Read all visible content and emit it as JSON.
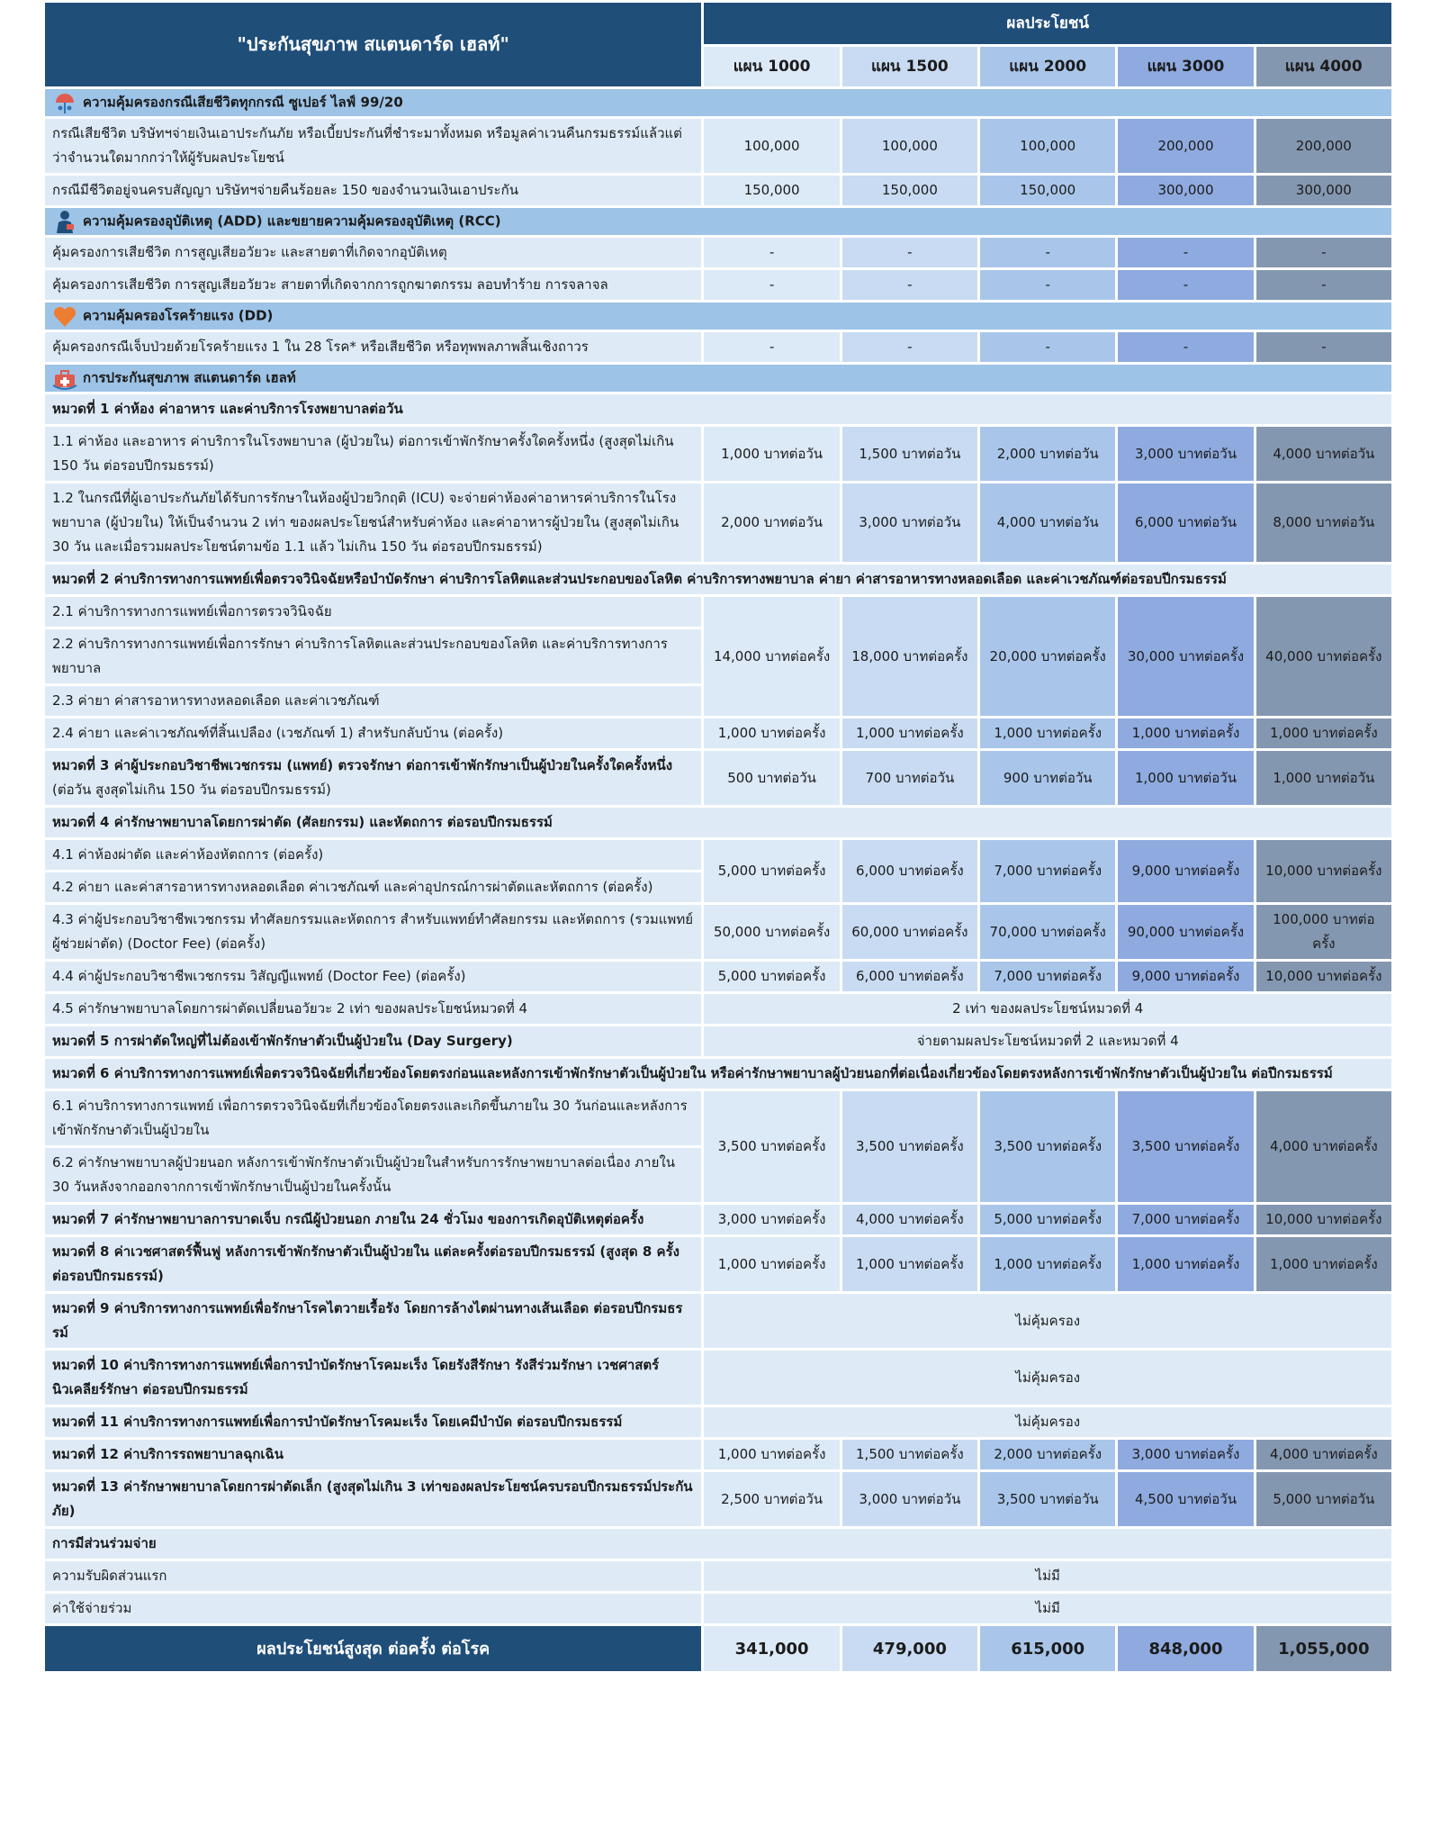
{
  "header": {
    "title": "\"ประกันสุขภาพ สแตนดาร์ด เฮลท์\"",
    "benefits": "ผลประโยชน์",
    "plans": [
      "แผน 1000",
      "แผน 1500",
      "แผน 2000",
      "แผน 3000",
      "แผน 4000"
    ]
  },
  "sections": [
    {
      "title": "ความคุ้มครองกรณีเสียชีวิตทุกกรณี   ซูเปอร์ ไลฟ์ 99/20",
      "rows": [
        {
          "label": "กรณีเสียชีวิต บริษัทฯจ่ายเงินเอาประกันภัย หรือเบี้ยประกันที่ชำระมาทั้งหมด หรือมูลค่าเวนคืนกรมธรรม์แล้วแต่ว่าจำนวนใดมากกว่าให้ผู้รับผลประโยชน์",
          "values": [
            "100,000",
            "100,000",
            "100,000",
            "200,000",
            "200,000"
          ]
        },
        {
          "label": "กรณีมีชีวิตอยู่จนครบสัญญา บริษัทฯจ่ายคืนร้อยละ 150 ของจำนวนเงินเอาประกัน",
          "values": [
            "150,000",
            "150,000",
            "150,000",
            "300,000",
            "300,000"
          ]
        }
      ]
    },
    {
      "title": "ความคุ้มครองอุบัติเหตุ (ADD)  และขยายความคุ้มครองอุบัติเหตุ (RCC)",
      "rows": [
        {
          "label": "คุ้มครองการเสียชีวิต การสูญเสียอวัยวะ และสายตาที่เกิดจากอุบัติเหตุ",
          "values": [
            "-",
            "-",
            "-",
            "-",
            "-"
          ]
        },
        {
          "label": "คุ้มครองการเสียชีวิต การสูญเสียอวัยวะ สายตาที่เกิดจากการถูกฆาตกรรม ลอบทำร้าย การจลาจล",
          "values": [
            "-",
            "-",
            "-",
            "-",
            "-"
          ]
        }
      ]
    },
    {
      "title": "ความคุ้มครองโรคร้ายแรง (DD)",
      "rows": [
        {
          "label": "คุ้มครองกรณีเจ็บป่วยด้วยโรคร้ายแรง 1 ใน 28 โรค* หรือเสียชีวิต หรือทุพพลภาพสิ้นเชิงถาวร",
          "values": [
            "-",
            "-",
            "-",
            "-",
            "-"
          ]
        }
      ]
    },
    {
      "title": "การประกันสุขภาพ สแตนดาร์ด เฮลท์",
      "rows": [
        {
          "heading": "หมวดที่ 1 ค่าห้อง ค่าอาหาร และค่าบริการโรงพยาบาลต่อวัน"
        },
        {
          "label": "1.1 ค่าห้อง และอาหาร ค่าบริการในโรงพยาบาล (ผู้ป่วยใน) ต่อการเข้าพักรักษาครั้งใดครั้งหนึ่ง (สูงสุดไม่เกิน 150 วัน ต่อรอบปีกรมธรรม์)",
          "values": [
            "1,000 บาทต่อวัน",
            "1,500 บาทต่อวัน",
            "2,000 บาทต่อวัน",
            "3,000 บาทต่อวัน",
            "4,000 บาทต่อวัน"
          ]
        },
        {
          "label": "1.2 ในกรณีที่ผู้เอาประกันภัยได้รับการรักษาในห้องผู้ป่วยวิกฤติ (ICU) จะจ่ายค่าห้องค่าอาหารค่าบริการในโรงพยาบาล (ผู้ป่วยใน) ให้เป็นจำนวน 2 เท่า ของผลประโยชน์สำหรับค่าห้อง และค่าอาหารผู้ป่วยใน (สูงสุดไม่เกิน 30 วัน และเมื่อรวมผลประโยชน์ตามข้อ 1.1 แล้ว ไม่เกิน 150 วัน ต่อรอบปีกรมธรรม์)",
          "values": [
            "2,000 บาทต่อวัน",
            "3,000 บาทต่อวัน",
            "4,000 บาทต่อวัน",
            "6,000 บาทต่อวัน",
            "8,000 บาทต่อวัน"
          ]
        },
        {
          "heading": "หมวดที่ 2 ค่าบริการทางการแพทย์เพื่อตรวจวินิจฉัยหรือบำบัดรักษา ค่าบริการโลหิตและส่วนประกอบของโลหิต ค่าบริการทางพยาบาล ค่ายา ค่าสารอาหารทางหลอดเลือด และค่าเวชภัณฑ์ต่อรอบปีกรมธรรม์"
        },
        {
          "labels": [
            "2.1 ค่าบริการทางการแพทย์เพื่อการตรวจวินิจฉัย",
            "2.2 ค่าบริการทางการแพทย์เพื่อการรักษา ค่าบริการโลหิตและส่วนประกอบของโลหิต และค่าบริการทางการพยาบาล",
            "2.3 ค่ายา ค่าสารอาหารทางหลอดเลือด และค่าเวชภัณฑ์"
          ],
          "values": [
            "14,000 บาทต่อครั้ง",
            "18,000 บาทต่อครั้ง",
            "20,000 บาทต่อครั้ง",
            "30,000 บาทต่อครั้ง",
            "40,000 บาทต่อครั้ง"
          ]
        },
        {
          "label": "2.4 ค่ายา และค่าเวชภัณฑ์ที่สิ้นเปลือง (เวชภัณฑ์ 1) สำหรับกลับบ้าน (ต่อครั้ง)",
          "values": [
            "1,000 บาทต่อครั้ง",
            "1,000 บาทต่อครั้ง",
            "1,000 บาทต่อครั้ง",
            "1,000 บาทต่อครั้ง",
            "1,000 บาทต่อครั้ง"
          ]
        },
        {
          "heading": "หมวดที่ 3 ค่าผู้ประกอบวิชาชีพเวชกรรม (แพทย์) ตรวจรักษา ต่อการเข้าพักรักษาเป็นผู้ป่วยในครั้งใดครั้งหนึ่ง",
          "note": "(ต่อวัน สูงสุดไม่เกิน 150 วัน ต่อรอบปีกรมธรรม์)",
          "values": [
            "500 บาทต่อวัน",
            "700 บาทต่อวัน",
            "900 บาทต่อวัน",
            "1,000 บาทต่อวัน",
            "1,000 บาทต่อวัน"
          ]
        },
        {
          "heading": "หมวดที่ 4 ค่ารักษาพยาบาลโดยการผ่าตัด (ศัลยกรรม) และหัตถการ ต่อรอบปีกรมธรรม์"
        },
        {
          "labels": [
            "4.1 ค่าห้องผ่าตัด และค่าห้องหัตถการ (ต่อครั้ง)",
            "4.2 ค่ายา และค่าสารอาหารทางหลอดเลือด ค่าเวชภัณฑ์ และค่าอุปกรณ์การผ่าตัดและหัตถการ (ต่อครั้ง)"
          ],
          "values": [
            "5,000 บาทต่อครั้ง",
            "6,000 บาทต่อครั้ง",
            "7,000 บาทต่อครั้ง",
            "9,000 บาทต่อครั้ง",
            "10,000 บาทต่อครั้ง"
          ]
        },
        {
          "label": "4.3 ค่าผู้ประกอบวิชาชีพเวชกรรม ทำศัลยกรรมและหัตถการ สำหรับแพทย์ทำศัลยกรรม และหัตถการ (รวมแพทย์ผู้ช่วยผ่าตัด) (Doctor Fee) (ต่อครั้ง)",
          "values": [
            "50,000 บาทต่อครั้ง",
            "60,000 บาทต่อครั้ง",
            "70,000 บาทต่อครั้ง",
            "90,000 บาทต่อครั้ง",
            "100,000 บาทต่อครั้ง"
          ]
        },
        {
          "label": "4.4 ค่าผู้ประกอบวิชาชีพเวชกรรม วิสัญญีแพทย์ (Doctor Fee) (ต่อครั้ง)",
          "values": [
            "5,000 บาทต่อครั้ง",
            "6,000 บาทต่อครั้ง",
            "7,000 บาทต่อครั้ง",
            "9,000 บาทต่อครั้ง",
            "10,000 บาทต่อครั้ง"
          ]
        },
        {
          "label": "4.5 ค่ารักษาพยาบาลโดยการผ่าตัดเปลี่ยนอวัยวะ 2 เท่า ของผลประโยชน์หมวดที่ 4",
          "value": "2 เท่า ของผลประโยชน์หมวดที่ 4"
        },
        {
          "heading": "หมวดที่ 5 การผ่าตัดใหญ่ที่ไม่ต้องเข้าพักรักษาตัวเป็นผู้ป่วยใน (Day Surgery)",
          "value": "จ่ายตามผลประโยชน์หมวดที่ 2 และหมวดที่ 4"
        },
        {
          "heading": "หมวดที่ 6 ค่าบริการทางการแพทย์เพื่อตรวจวินิจฉัยที่เกี่ยวข้องโดยตรงก่อนและหลังการเข้าพักรักษาตัวเป็นผู้ป่วยใน หรือค่ารักษาพยาบาลผู้ป่วยนอกที่ต่อเนื่องเกี่ยวข้องโดยตรงหลังการเข้าพักรักษาตัวเป็นผู้ป่วยใน ต่อปีกรมธรรม์"
        },
        {
          "labels": [
            "6.1 ค่าบริการทางการแพทย์ เพื่อการตรวจวินิจฉัยที่เกี่ยวข้องโดยตรงและเกิดขึ้นภายใน 30 วันก่อนและหลังการเข้าพักรักษาตัวเป็นผู้ป่วยใน",
            "6.2 ค่ารักษาพยาบาลผู้ป่วยนอก หลังการเข้าพักรักษาตัวเป็นผู้ป่วยในสำหรับการรักษาพยาบาลต่อเนื่อง ภายใน 30 วันหลังจากออกจากการเข้าพักรักษาเป็นผู้ป่วยในครั้งนั้น"
          ],
          "values": [
            "3,500 บาทต่อครั้ง",
            "3,500 บาทต่อครั้ง",
            "3,500 บาทต่อครั้ง",
            "3,500 บาทต่อครั้ง",
            "4,000 บาทต่อครั้ง"
          ]
        },
        {
          "heading": "หมวดที่ 7 ค่ารักษาพยาบาลการบาดเจ็บ กรณีผู้ป่วยนอก ภายใน 24 ชั่วโมง ของการเกิดอุบัติเหตุต่อครั้ง",
          "values": [
            "3,000 บาทต่อครั้ง",
            "4,000 บาทต่อครั้ง",
            "5,000 บาทต่อครั้ง",
            "7,000 บาทต่อครั้ง",
            "10,000 บาทต่อครั้ง"
          ]
        },
        {
          "heading": "หมวดที่ 8 ค่าเวชศาสตร์ฟื้นฟู หลังการเข้าพักรักษาตัวเป็นผู้ป่วยใน แต่ละครั้งต่อรอบปีกรมธรรม์ (สูงสุด 8 ครั้ง ต่อรอบปีกรมธรรม์)",
          "values": [
            "1,000 บาทต่อครั้ง",
            "1,000 บาทต่อครั้ง",
            "1,000 บาทต่อครั้ง",
            "1,000 บาทต่อครั้ง",
            "1,000 บาทต่อครั้ง"
          ]
        },
        {
          "heading": "หมวดที่ 9 ค่าบริการทางการแพทย์เพื่อรักษาโรคไตวายเรื้อรัง โดยการล้างไตผ่านทางเส้นเลือด ต่อรอบปีกรมธรรม์",
          "value": "ไม่คุ้มครอง"
        },
        {
          "heading": "หมวดที่ 10 ค่าบริการทางการแพทย์เพื่อการบำบัดรักษาโรคมะเร็ง โดยรังสีรักษา รังสีร่วมรักษา เวชศาสตร์นิวเคลียร์รักษา ต่อรอบปีกรมธรรม์",
          "value": "ไม่คุ้มครอง"
        },
        {
          "heading": "หมวดที่ 11 ค่าบริการทางการแพทย์เพื่อการบำบัดรักษาโรคมะเร็ง โดยเคมีบำบัด ต่อรอบปีกรมธรรม์",
          "value": "ไม่คุ้มครอง"
        },
        {
          "heading": "หมวดที่ 12 ค่าบริการรถพยาบาลฉุกเฉิน",
          "values": [
            "1,000 บาทต่อครั้ง",
            "1,500 บาทต่อครั้ง",
            "2,000 บาทต่อครั้ง",
            "3,000 บาทต่อครั้ง",
            "4,000 บาทต่อครั้ง"
          ]
        },
        {
          "heading": "หมวดที่ 13 ค่ารักษาพยาบาลโดยการผ่าตัดเล็ก (สูงสุดไม่เกิน 3 เท่าของผลประโยชน์ครบรอบปีกรมธรรม์ประกันภัย)",
          "values": [
            "2,500 บาทต่อวัน",
            "3,000 บาทต่อวัน",
            "3,500 บาทต่อวัน",
            "4,500 บาทต่อวัน",
            "5,000 บาทต่อวัน"
          ]
        },
        {
          "heading": "การมีส่วนร่วมจ่าย"
        },
        {
          "label": "ความรับผิดส่วนแรก",
          "value": "ไม่มี"
        },
        {
          "label": "ค่าใช้จ่ายร่วม",
          "value": "ไม่มี"
        }
      ]
    }
  ],
  "footer": {
    "label": "ผลประโยชน์สูงสุด ต่อครั้ง ต่อโรค",
    "values": [
      "341,000",
      "479,000",
      "615,000",
      "848,000",
      "1,055,000"
    ]
  }
}
